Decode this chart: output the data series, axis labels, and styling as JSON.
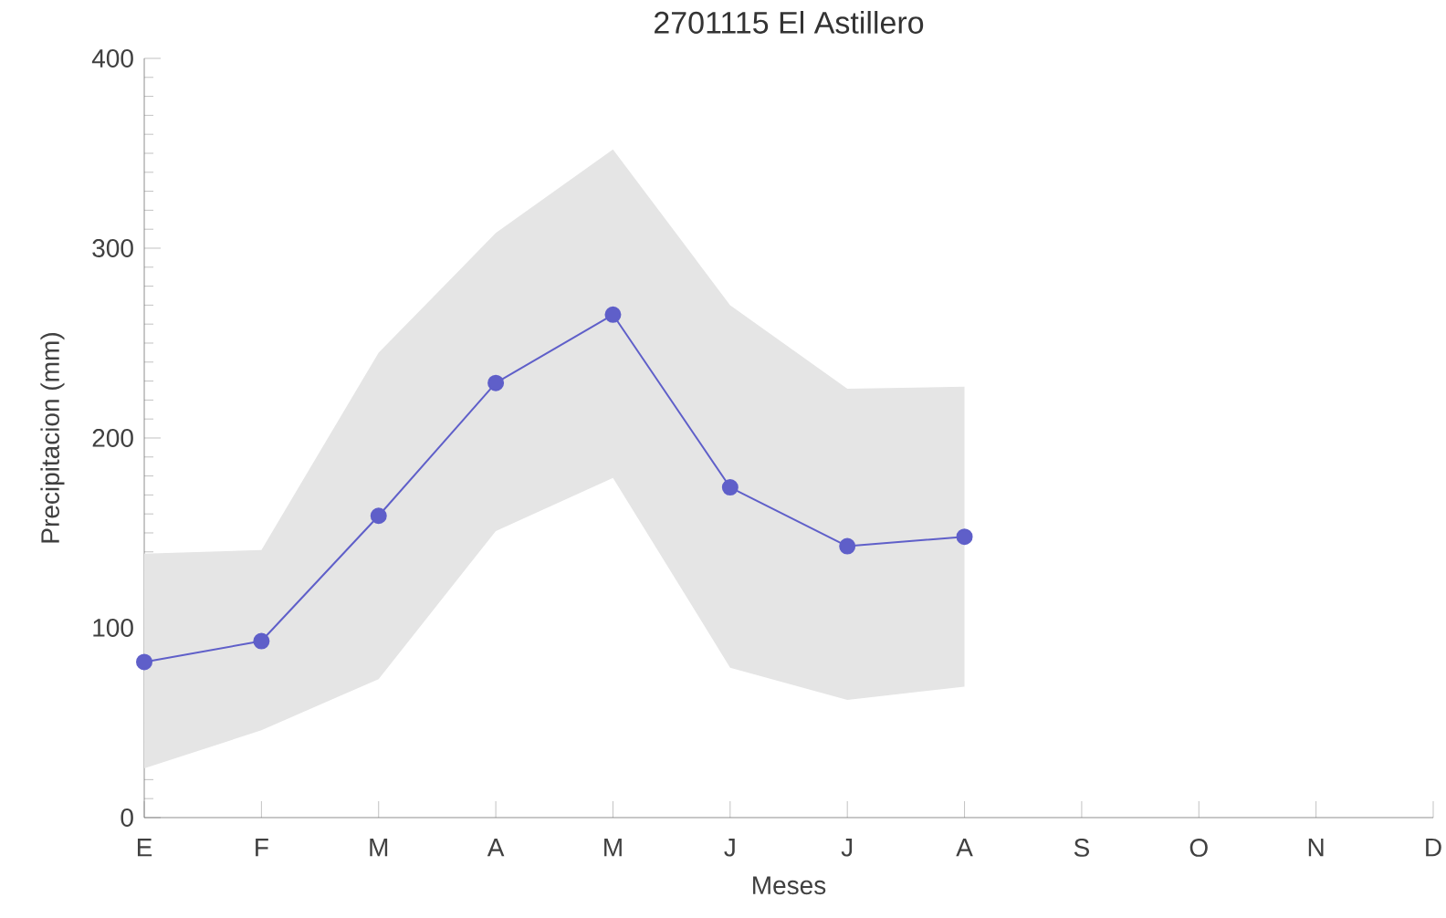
{
  "chart_data": {
    "type": "line",
    "title": "2701115 El Astillero",
    "xlabel": "Meses",
    "ylabel": "Precipitacion (mm)",
    "categories": [
      "E",
      "F",
      "M",
      "A",
      "M",
      "J",
      "J",
      "A",
      "S",
      "O",
      "N",
      "D"
    ],
    "series": [
      {
        "color": "#5f5fc9",
        "values": [
          82,
          93,
          159,
          229,
          265,
          174,
          143,
          148,
          null,
          null,
          null,
          null
        ],
        "lower": [
          26,
          46,
          73,
          151,
          179,
          79,
          62,
          69,
          null,
          null,
          null,
          null
        ],
        "upper": [
          139,
          141,
          245,
          308,
          352,
          270,
          226,
          227,
          null,
          null,
          null,
          null
        ]
      }
    ],
    "ylim": [
      0,
      400
    ],
    "yticks": [
      0,
      100,
      200,
      300,
      400
    ],
    "marker": "circle",
    "line_style": "solid",
    "grid": false
  }
}
